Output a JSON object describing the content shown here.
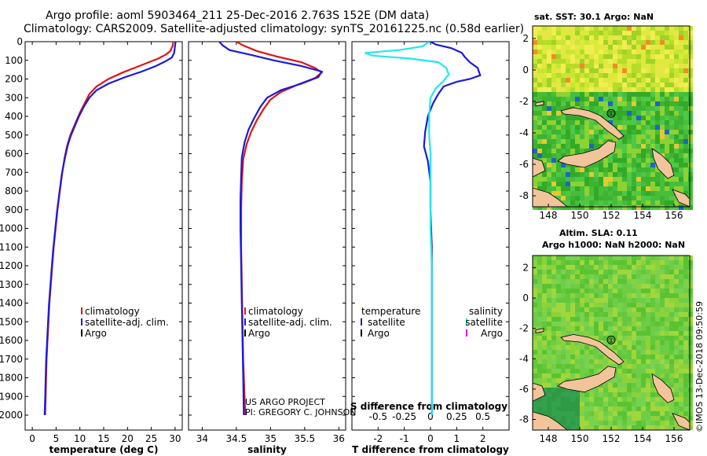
{
  "header": {
    "line1": "Argo profile: aoml 5903464_211 25-Dec-2016 2.763S 152E (DM data)",
    "line2": "Climatology: CARS2009. Satellite-adjusted climatology: synTS_20161225.nc (0.58d earlier)"
  },
  "colors": {
    "climatology": "#e01414",
    "satellite": "#1a1adc",
    "argo": "#000000",
    "sat_s": "#22e8e8",
    "argo_s": "#e000e0",
    "land": "#f2c49c"
  },
  "chart_data": [
    {
      "type": "line",
      "name": "temperature-profile",
      "xlabel": "temperature (deg C)",
      "ylabel": "",
      "xlim": [
        -1.5,
        31.5
      ],
      "ylim": [
        2080,
        0
      ],
      "xticks": [
        0,
        5,
        10,
        15,
        20,
        25,
        30
      ],
      "yticks": [
        0,
        100,
        200,
        300,
        400,
        500,
        600,
        700,
        800,
        900,
        1000,
        1100,
        1200,
        1300,
        1400,
        1500,
        1600,
        1700,
        1800,
        1900,
        2000
      ],
      "series": [
        {
          "name": "climatology",
          "color": "#e01414",
          "points": [
            [
              29.6,
              0
            ],
            [
              29.5,
              20
            ],
            [
              29.0,
              50
            ],
            [
              28.0,
              70
            ],
            [
              26.5,
              90
            ],
            [
              24.5,
              110
            ],
            [
              22.0,
              135
            ],
            [
              19.0,
              165
            ],
            [
              16.0,
              200
            ],
            [
              13.5,
              240
            ],
            [
              12.0,
              280
            ],
            [
              11.0,
              330
            ],
            [
              10.0,
              380
            ],
            [
              9.0,
              440
            ],
            [
              8.0,
              500
            ],
            [
              7.3,
              560
            ],
            [
              6.8,
              620
            ],
            [
              6.3,
              700
            ],
            [
              5.8,
              800
            ],
            [
              5.3,
              900
            ],
            [
              4.9,
              1000
            ],
            [
              4.5,
              1100
            ],
            [
              4.2,
              1200
            ],
            [
              3.9,
              1300
            ],
            [
              3.6,
              1400
            ],
            [
              3.4,
              1500
            ],
            [
              3.2,
              1600
            ],
            [
              3.0,
              1700
            ],
            [
              2.9,
              1800
            ],
            [
              2.8,
              1900
            ],
            [
              2.7,
              2000
            ]
          ]
        },
        {
          "name": "satellite-adj. clim.",
          "color": "#1a1adc",
          "points": [
            [
              30.1,
              0
            ],
            [
              30.0,
              20
            ],
            [
              29.8,
              60
            ],
            [
              29.3,
              85
            ],
            [
              28.0,
              105
            ],
            [
              26.0,
              130
            ],
            [
              23.0,
              160
            ],
            [
              19.5,
              190
            ],
            [
              16.0,
              225
            ],
            [
              13.5,
              260
            ],
            [
              12.0,
              300
            ],
            [
              10.8,
              350
            ],
            [
              9.8,
              400
            ],
            [
              8.8,
              460
            ],
            [
              8.0,
              510
            ],
            [
              7.4,
              560
            ],
            [
              6.8,
              630
            ],
            [
              6.2,
              710
            ],
            [
              5.7,
              810
            ],
            [
              5.2,
              910
            ],
            [
              4.8,
              1010
            ],
            [
              4.4,
              1110
            ],
            [
              4.1,
              1210
            ],
            [
              3.8,
              1310
            ],
            [
              3.5,
              1410
            ],
            [
              3.3,
              1510
            ],
            [
              3.1,
              1610
            ],
            [
              2.9,
              1710
            ],
            [
              2.8,
              1810
            ],
            [
              2.7,
              1910
            ],
            [
              2.6,
              2000
            ]
          ]
        }
      ],
      "legend": {
        "position": "bottom-right",
        "items": [
          {
            "label": "climatology",
            "color": "#e01414"
          },
          {
            "label": "satellite-adj. clim.",
            "color": "#1a1adc"
          },
          {
            "label": "Argo",
            "color": "#000000"
          }
        ]
      }
    },
    {
      "type": "line",
      "name": "salinity-profile",
      "xlabel": "salinity",
      "ylabel": "",
      "xlim": [
        33.8,
        36.1
      ],
      "ylim": [
        2080,
        0
      ],
      "xticks": [
        34,
        34.5,
        35,
        35.5,
        36
      ],
      "yticks": [
        0,
        100,
        200,
        300,
        400,
        500,
        600,
        700,
        800,
        900,
        1000,
        1100,
        1200,
        1300,
        1400,
        1500,
        1600,
        1700,
        1800,
        1900,
        2000
      ],
      "series": [
        {
          "name": "climatology",
          "color": "#e01414",
          "points": [
            [
              34.5,
              0
            ],
            [
              34.6,
              20
            ],
            [
              34.8,
              50
            ],
            [
              35.1,
              80
            ],
            [
              35.45,
              110
            ],
            [
              35.65,
              140
            ],
            [
              35.75,
              165
            ],
            [
              35.65,
              195
            ],
            [
              35.4,
              230
            ],
            [
              35.15,
              270
            ],
            [
              35.0,
              310
            ],
            [
              34.9,
              360
            ],
            [
              34.8,
              420
            ],
            [
              34.72,
              480
            ],
            [
              34.65,
              550
            ],
            [
              34.6,
              630
            ],
            [
              34.58,
              750
            ],
            [
              34.57,
              900
            ],
            [
              34.57,
              1100
            ],
            [
              34.58,
              1300
            ],
            [
              34.59,
              1500
            ],
            [
              34.6,
              1700
            ],
            [
              34.62,
              1900
            ],
            [
              34.63,
              2000
            ]
          ]
        },
        {
          "name": "satellite-adj. clim.",
          "color": "#1a1adc",
          "points": [
            [
              34.25,
              0
            ],
            [
              34.3,
              20
            ],
            [
              34.4,
              45
            ],
            [
              34.7,
              70
            ],
            [
              35.05,
              100
            ],
            [
              35.45,
              130
            ],
            [
              35.75,
              160
            ],
            [
              35.7,
              190
            ],
            [
              35.45,
              225
            ],
            [
              35.15,
              260
            ],
            [
              34.95,
              300
            ],
            [
              34.85,
              350
            ],
            [
              34.76,
              410
            ],
            [
              34.68,
              470
            ],
            [
              34.62,
              540
            ],
            [
              34.58,
              620
            ],
            [
              34.57,
              720
            ],
            [
              34.56,
              850
            ],
            [
              34.56,
              1000
            ],
            [
              34.57,
              1200
            ],
            [
              34.58,
              1400
            ],
            [
              34.59,
              1600
            ],
            [
              34.6,
              1800
            ],
            [
              34.61,
              2000
            ]
          ]
        }
      ],
      "legend": {
        "position": "bottom-right",
        "items": [
          {
            "label": "climatology",
            "color": "#e01414"
          },
          {
            "label": "satellite-adj. clim.",
            "color": "#1a1adc"
          },
          {
            "label": "Argo",
            "color": "#000000"
          }
        ]
      }
    },
    {
      "type": "line",
      "name": "difference-profile",
      "xlabel": "T difference from climatology",
      "xlabel_top": "S difference from climatology",
      "xlim": [
        -3,
        3
      ],
      "ylim": [
        2080,
        0
      ],
      "xticks": [
        -2,
        -1,
        0,
        1,
        2
      ],
      "xticks_top": [
        -0.5,
        -0.25,
        0,
        0.25,
        0.5
      ],
      "xtick_labels_top": [
        "-0.5",
        "-0.25",
        "0",
        "0.25",
        "0.5"
      ],
      "series": [
        {
          "name": "temperature satellite",
          "color": "#1a1adc",
          "points": [
            [
              0,
              0
            ],
            [
              0.2,
              15
            ],
            [
              0.8,
              35
            ],
            [
              1.2,
              60
            ],
            [
              1.3,
              80
            ],
            [
              1.5,
              110
            ],
            [
              1.8,
              140
            ],
            [
              1.9,
              180
            ],
            [
              1.5,
              200
            ],
            [
              1.0,
              215
            ],
            [
              0.5,
              240
            ],
            [
              0.3,
              280
            ],
            [
              0.1,
              330
            ],
            [
              -0.1,
              400
            ],
            [
              -0.2,
              480
            ],
            [
              -0.25,
              560
            ],
            [
              -0.1,
              640
            ],
            [
              0,
              750
            ],
            [
              0,
              900
            ],
            [
              0.05,
              1100
            ],
            [
              0.05,
              1300
            ],
            [
              0.05,
              1500
            ],
            [
              0.05,
              1700
            ],
            [
              0.05,
              1900
            ],
            [
              0.05,
              2000
            ]
          ]
        },
        {
          "name": "salinity satellite",
          "color": "#22e8e8",
          "points": [
            [
              -0.05,
              0
            ],
            [
              -0.3,
              25
            ],
            [
              -1.2,
              45
            ],
            [
              -2.5,
              60
            ],
            [
              -2.2,
              75
            ],
            [
              -0.8,
              90
            ],
            [
              0.3,
              110
            ],
            [
              0.6,
              140
            ],
            [
              0.7,
              175
            ],
            [
              0.5,
              210
            ],
            [
              0.2,
              250
            ],
            [
              0,
              300
            ],
            [
              -0.05,
              400
            ],
            [
              -0.05,
              500
            ],
            [
              0,
              600
            ],
            [
              0,
              800
            ],
            [
              0,
              1000
            ],
            [
              0.05,
              1200
            ],
            [
              0.05,
              1400
            ],
            [
              0.05,
              1600
            ],
            [
              0.05,
              1800
            ],
            [
              0.05,
              2000
            ]
          ]
        }
      ],
      "legend": {
        "position": "bottom",
        "left_title": "temperature",
        "right_title": "salinity",
        "left_items": [
          {
            "label": "satellite",
            "color": "#1a1adc"
          },
          {
            "label": "Argo",
            "color": "#000000"
          }
        ],
        "right_items": [
          {
            "label": "satellite",
            "color": "#22e8e8"
          },
          {
            "label": "Argo",
            "color": "#e000e0"
          }
        ]
      }
    }
  ],
  "labels": {
    "project_line1": "US ARGO PROJECT",
    "project_line2": "PI: GREGORY C. JOHNSON",
    "timestamp": "©IMOS 13-Dec-2018 09:50:59"
  },
  "maps": [
    {
      "name": "sst-map",
      "title_line1": "sat. SST: 30.1 Argo: NaN",
      "title_line2": "",
      "lon_range": [
        147,
        157
      ],
      "lat_range": [
        -8.7,
        2.8
      ],
      "lon_ticks": [
        148,
        150,
        152,
        154,
        156
      ],
      "lat_ticks": [
        2,
        0,
        -2,
        -4,
        -6,
        -8
      ],
      "float_lon": 152.0,
      "float_lat": -2.76,
      "float_marker": "①"
    },
    {
      "name": "sla-map",
      "title_line1": "Altim. SLA: 0.11",
      "title_line2": "Argo h1000: NaN h2000: NaN",
      "lon_range": [
        147,
        157
      ],
      "lat_range": [
        -8.7,
        2.8
      ],
      "lon_ticks": [
        148,
        150,
        152,
        154,
        156
      ],
      "lat_ticks": [
        2,
        0,
        -2,
        -4,
        -6,
        -8
      ],
      "float_lon": 152.0,
      "float_lat": -2.76,
      "float_marker": "①"
    }
  ]
}
